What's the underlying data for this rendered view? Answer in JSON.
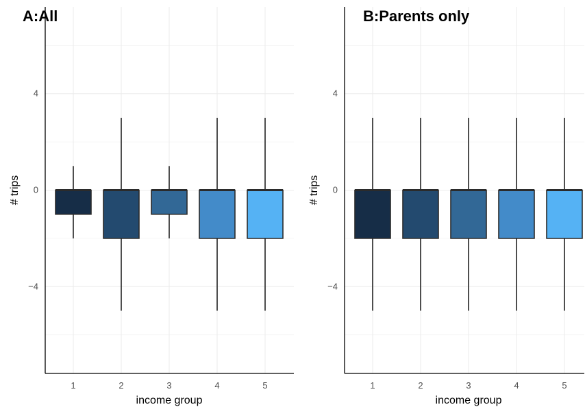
{
  "chart_data": [
    {
      "type": "box",
      "title": "A:All",
      "xlabel": "income group",
      "ylabel": "# trips",
      "categories": [
        "1",
        "2",
        "3",
        "4",
        "5"
      ],
      "y_ticks": [
        "4",
        "0",
        "−4"
      ],
      "y_tick_values": [
        4,
        0,
        -4
      ],
      "ylim": [
        -7.6,
        7.6
      ],
      "grid": true,
      "colors": [
        "#162d47",
        "#234a6f",
        "#326896",
        "#438bc9",
        "#55b2f4"
      ],
      "boxes": [
        {
          "category": "1",
          "whisker_low": -2,
          "q1": -1,
          "median": 0,
          "q3": 0,
          "whisker_high": 1
        },
        {
          "category": "2",
          "whisker_low": -5,
          "q1": -2,
          "median": 0,
          "q3": 0,
          "whisker_high": 3
        },
        {
          "category": "3",
          "whisker_low": -2,
          "q1": -1,
          "median": 0,
          "q3": 0,
          "whisker_high": 1
        },
        {
          "category": "4",
          "whisker_low": -5,
          "q1": -2,
          "median": 0,
          "q3": 0,
          "whisker_high": 3
        },
        {
          "category": "5",
          "whisker_low": -5,
          "q1": -2,
          "median": 0,
          "q3": 0,
          "whisker_high": 3
        }
      ]
    },
    {
      "type": "box",
      "title": "B:Parents only",
      "xlabel": "income group",
      "ylabel": "# trips",
      "categories": [
        "1",
        "2",
        "3",
        "4",
        "5"
      ],
      "y_ticks": [
        "4",
        "0",
        "−4"
      ],
      "y_tick_values": [
        4,
        0,
        -4
      ],
      "ylim": [
        -7.6,
        7.6
      ],
      "grid": true,
      "colors": [
        "#162d47",
        "#234a6f",
        "#326896",
        "#438bc9",
        "#55b2f4"
      ],
      "boxes": [
        {
          "category": "1",
          "whisker_low": -5,
          "q1": -2,
          "median": 0,
          "q3": 0,
          "whisker_high": 3
        },
        {
          "category": "2",
          "whisker_low": -5,
          "q1": -2,
          "median": 0,
          "q3": 0,
          "whisker_high": 3
        },
        {
          "category": "3",
          "whisker_low": -5,
          "q1": -2,
          "median": 0,
          "q3": 0,
          "whisker_high": 3
        },
        {
          "category": "4",
          "whisker_low": -5,
          "q1": -2,
          "median": 0,
          "q3": 0,
          "whisker_high": 3
        },
        {
          "category": "5",
          "whisker_low": -5,
          "q1": -2,
          "median": 0,
          "q3": 0,
          "whisker_high": 3
        }
      ]
    }
  ]
}
